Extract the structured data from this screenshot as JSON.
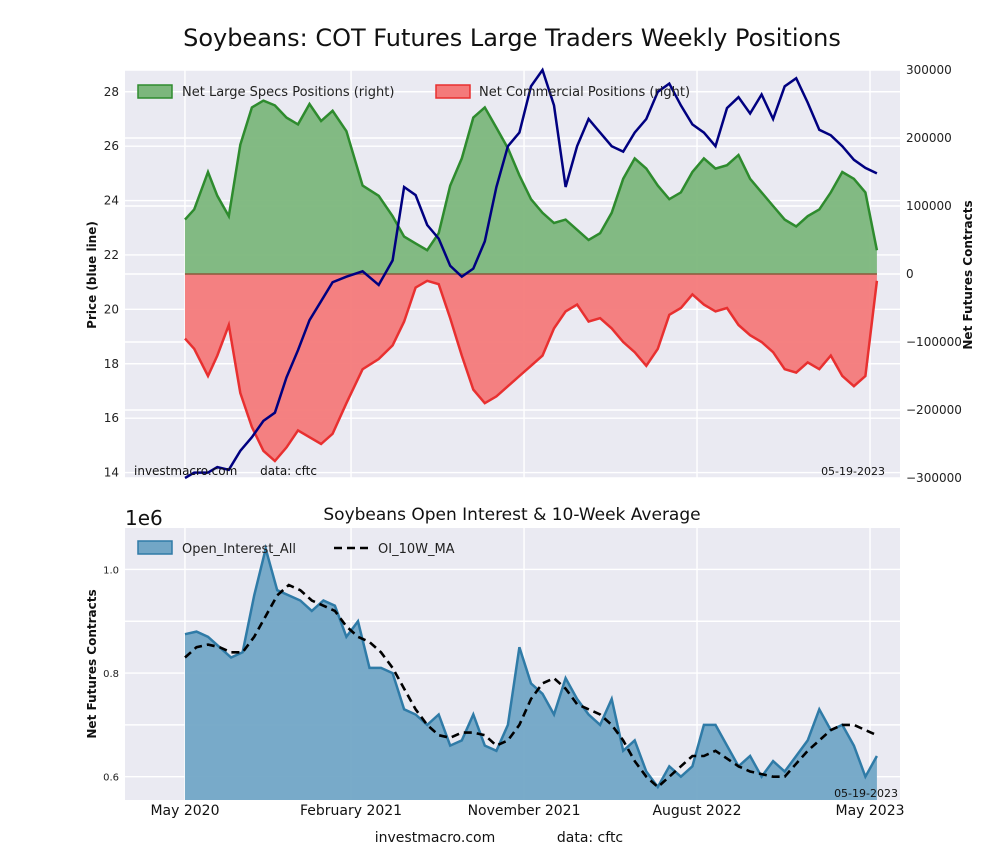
{
  "colors": {
    "plot_bg": "#eaeaf2",
    "grid": "#ffffff",
    "specs_fill": "#7cb77c",
    "specs_line": "#2e8b2e",
    "comm_fill": "#f47a7a",
    "comm_line": "#e83030",
    "price_line": "#000080",
    "oi_fill": "#72a6c6",
    "oi_line": "#2f7ba7",
    "ma_line": "#000000"
  },
  "title": "Soybeans: COT Futures Large Traders Weekly Positions",
  "footer": {
    "site": "investmacro.com",
    "source": "data: cftc"
  },
  "chart_data": [
    {
      "type": "area",
      "left_ylabel": "Price (blue line)",
      "right_ylabel": "Net Futures Contracts",
      "left_ylim": [
        13.8,
        28.8
      ],
      "right_ylim": [
        -300000,
        300000
      ],
      "left_ticks": [
        "14",
        "16",
        "18",
        "20",
        "22",
        "24",
        "26",
        "28"
      ],
      "right_ticks": [
        "300000",
        "200000",
        "100000",
        "0",
        "−100000",
        "−200000",
        "−300000"
      ],
      "legend": [
        "Net Large Specs Positions (right)",
        "Net Commercial Positions (right)"
      ],
      "annotation_left": "investmacro.com      data: cftc",
      "annotation_right": "05-19-2023",
      "series": [
        {
          "name": "Net Large Specs Positions (right)",
          "kind": "area",
          "x": [
            2020.38,
            2020.42,
            2020.48,
            2020.52,
            2020.57,
            2020.62,
            2020.67,
            2020.72,
            2020.77,
            2020.82,
            2020.87,
            2020.92,
            2020.97,
            2021.02,
            2021.08,
            2021.15,
            2021.22,
            2021.28,
            2021.33,
            2021.38,
            2021.43,
            2021.48,
            2021.53,
            2021.58,
            2021.63,
            2021.68,
            2021.73,
            2021.78,
            2021.83,
            2021.88,
            2021.93,
            2021.98,
            2022.03,
            2022.08,
            2022.13,
            2022.18,
            2022.23,
            2022.28,
            2022.33,
            2022.38,
            2022.43,
            2022.48,
            2022.53,
            2022.58,
            2022.63,
            2022.68,
            2022.73,
            2022.78,
            2022.83,
            2022.88,
            2022.93,
            2022.98,
            2023.03,
            2023.08,
            2023.13,
            2023.18,
            2023.23,
            2023.28,
            2023.33,
            2023.38
          ],
          "values": [
            80000,
            95000,
            150000,
            115000,
            85000,
            190000,
            245000,
            255000,
            248000,
            230000,
            220000,
            250000,
            225000,
            240000,
            210000,
            130000,
            115000,
            85000,
            55000,
            45000,
            35000,
            60000,
            130000,
            170000,
            230000,
            245000,
            215000,
            185000,
            145000,
            110000,
            90000,
            75000,
            80000,
            65000,
            50000,
            60000,
            90000,
            140000,
            170000,
            155000,
            130000,
            110000,
            120000,
            150000,
            170000,
            155000,
            160000,
            175000,
            140000,
            120000,
            100000,
            80000,
            70000,
            85000,
            95000,
            120000,
            150000,
            140000,
            120000,
            35000
          ]
        },
        {
          "name": "Net Commercial Positions (right)",
          "kind": "area",
          "x": [
            2020.38,
            2020.42,
            2020.48,
            2020.52,
            2020.57,
            2020.62,
            2020.67,
            2020.72,
            2020.77,
            2020.82,
            2020.87,
            2020.92,
            2020.97,
            2021.02,
            2021.08,
            2021.15,
            2021.22,
            2021.28,
            2021.33,
            2021.38,
            2021.43,
            2021.48,
            2021.53,
            2021.58,
            2021.63,
            2021.68,
            2021.73,
            2021.78,
            2021.83,
            2021.88,
            2021.93,
            2021.98,
            2022.03,
            2022.08,
            2022.13,
            2022.18,
            2022.23,
            2022.28,
            2022.33,
            2022.38,
            2022.43,
            2022.48,
            2022.53,
            2022.58,
            2022.63,
            2022.68,
            2022.73,
            2022.78,
            2022.83,
            2022.88,
            2022.93,
            2022.98,
            2023.03,
            2023.08,
            2023.13,
            2023.18,
            2023.23,
            2023.28,
            2023.33,
            2023.38
          ],
          "values": [
            -95000,
            -110000,
            -150000,
            -120000,
            -75000,
            -175000,
            -225000,
            -260000,
            -275000,
            -255000,
            -230000,
            -240000,
            -250000,
            -235000,
            -190000,
            -140000,
            -125000,
            -105000,
            -70000,
            -20000,
            -10000,
            -15000,
            -65000,
            -120000,
            -170000,
            -190000,
            -180000,
            -165000,
            -150000,
            -135000,
            -120000,
            -80000,
            -55000,
            -45000,
            -70000,
            -65000,
            -80000,
            -100000,
            -115000,
            -135000,
            -110000,
            -60000,
            -50000,
            -30000,
            -45000,
            -55000,
            -50000,
            -75000,
            -90000,
            -100000,
            -115000,
            -140000,
            -145000,
            -130000,
            -140000,
            -120000,
            -150000,
            -165000,
            -150000,
            -10000
          ]
        },
        {
          "name": "Price",
          "kind": "line",
          "x": [
            2020.38,
            2020.42,
            2020.48,
            2020.52,
            2020.57,
            2020.62,
            2020.67,
            2020.72,
            2020.77,
            2020.82,
            2020.87,
            2020.92,
            2020.97,
            2021.02,
            2021.08,
            2021.15,
            2021.22,
            2021.28,
            2021.33,
            2021.38,
            2021.43,
            2021.48,
            2021.53,
            2021.58,
            2021.63,
            2021.68,
            2021.73,
            2021.78,
            2021.83,
            2021.88,
            2021.93,
            2021.98,
            2022.03,
            2022.08,
            2022.13,
            2022.18,
            2022.23,
            2022.28,
            2022.33,
            2022.38,
            2022.43,
            2022.48,
            2022.53,
            2022.58,
            2022.63,
            2022.68,
            2022.73,
            2022.78,
            2022.83,
            2022.88,
            2022.93,
            2022.98,
            2023.03,
            2023.08,
            2023.13,
            2023.18,
            2023.23,
            2023.28,
            2023.33,
            2023.38
          ],
          "values": [
            13.8,
            14.0,
            14.0,
            14.2,
            14.1,
            14.8,
            15.3,
            15.9,
            16.2,
            17.5,
            18.5,
            19.6,
            20.3,
            21.0,
            21.2,
            21.4,
            20.9,
            21.8,
            24.5,
            24.2,
            23.1,
            22.6,
            21.6,
            21.2,
            21.5,
            22.5,
            24.5,
            26.0,
            26.5,
            28.2,
            28.8,
            27.5,
            24.5,
            26.0,
            27.0,
            26.5,
            26.0,
            25.8,
            26.5,
            27.0,
            28.0,
            28.3,
            27.5,
            26.8,
            26.5,
            26.0,
            27.4,
            27.8,
            27.2,
            27.9,
            27.0,
            28.2,
            28.5,
            27.6,
            26.6,
            26.4,
            26.0,
            25.5,
            25.2,
            25.0
          ]
        }
      ]
    },
    {
      "type": "area",
      "title": "Soybeans Open Interest & 10-Week Average",
      "ylabel": "Net Futures Contracts",
      "offset_label": "1e6",
      "ylim": [
        0.555,
        1.08
      ],
      "y_ticks": [
        "1.0",
        "0.8",
        "0.6"
      ],
      "x_ticks": [
        "May 2020",
        "February 2021",
        "November 2021",
        "August 2022",
        "May 2023"
      ],
      "legend": [
        "Open_Interest_All",
        "OI_10W_MA"
      ],
      "annotation_right": "05-19-2023",
      "series": [
        {
          "name": "Open_Interest_All",
          "kind": "area",
          "x": [
            2020.38,
            2020.43,
            2020.48,
            2020.53,
            2020.58,
            2020.63,
            2020.68,
            2020.73,
            2020.78,
            2020.83,
            2020.88,
            2020.93,
            2020.98,
            2021.03,
            2021.08,
            2021.13,
            2021.18,
            2021.23,
            2021.28,
            2021.33,
            2021.38,
            2021.43,
            2021.48,
            2021.53,
            2021.58,
            2021.63,
            2021.68,
            2021.73,
            2021.78,
            2021.83,
            2021.88,
            2021.93,
            2021.98,
            2022.03,
            2022.08,
            2022.13,
            2022.18,
            2022.23,
            2022.28,
            2022.33,
            2022.38,
            2022.43,
            2022.48,
            2022.53,
            2022.58,
            2022.63,
            2022.68,
            2022.73,
            2022.78,
            2022.83,
            2022.88,
            2022.93,
            2022.98,
            2023.03,
            2023.08,
            2023.13,
            2023.18,
            2023.23,
            2023.28,
            2023.33,
            2023.38
          ],
          "values": [
            0.875,
            0.88,
            0.87,
            0.85,
            0.83,
            0.84,
            0.95,
            1.04,
            0.96,
            0.95,
            0.94,
            0.92,
            0.94,
            0.93,
            0.87,
            0.9,
            0.81,
            0.81,
            0.8,
            0.73,
            0.72,
            0.7,
            0.72,
            0.66,
            0.67,
            0.72,
            0.66,
            0.65,
            0.7,
            0.85,
            0.78,
            0.76,
            0.72,
            0.79,
            0.75,
            0.72,
            0.7,
            0.75,
            0.65,
            0.67,
            0.61,
            0.58,
            0.62,
            0.6,
            0.62,
            0.7,
            0.7,
            0.66,
            0.62,
            0.64,
            0.6,
            0.63,
            0.61,
            0.64,
            0.67,
            0.73,
            0.69,
            0.7,
            0.66,
            0.6,
            0.64
          ]
        },
        {
          "name": "OI_10W_MA",
          "kind": "line",
          "x": [
            2020.38,
            2020.43,
            2020.48,
            2020.53,
            2020.58,
            2020.63,
            2020.68,
            2020.73,
            2020.78,
            2020.83,
            2020.88,
            2020.93,
            2020.98,
            2021.03,
            2021.08,
            2021.13,
            2021.18,
            2021.23,
            2021.28,
            2021.33,
            2021.38,
            2021.43,
            2021.48,
            2021.53,
            2021.58,
            2021.63,
            2021.68,
            2021.73,
            2021.78,
            2021.83,
            2021.88,
            2021.93,
            2021.98,
            2022.03,
            2022.08,
            2022.13,
            2022.18,
            2022.23,
            2022.28,
            2022.33,
            2022.38,
            2022.43,
            2022.48,
            2022.53,
            2022.58,
            2022.63,
            2022.68,
            2022.73,
            2022.78,
            2022.83,
            2022.88,
            2022.93,
            2022.98,
            2023.03,
            2023.08,
            2023.13,
            2023.18,
            2023.23,
            2023.28,
            2023.33,
            2023.38
          ],
          "values": [
            0.83,
            0.85,
            0.855,
            0.85,
            0.84,
            0.84,
            0.87,
            0.91,
            0.95,
            0.97,
            0.96,
            0.94,
            0.93,
            0.92,
            0.89,
            0.87,
            0.86,
            0.84,
            0.81,
            0.77,
            0.73,
            0.7,
            0.68,
            0.675,
            0.685,
            0.685,
            0.68,
            0.66,
            0.67,
            0.7,
            0.75,
            0.78,
            0.79,
            0.77,
            0.74,
            0.73,
            0.72,
            0.7,
            0.67,
            0.63,
            0.6,
            0.58,
            0.6,
            0.62,
            0.64,
            0.64,
            0.65,
            0.635,
            0.62,
            0.61,
            0.605,
            0.6,
            0.6,
            0.625,
            0.65,
            0.67,
            0.69,
            0.7,
            0.7,
            0.69,
            0.68
          ]
        }
      ]
    }
  ]
}
